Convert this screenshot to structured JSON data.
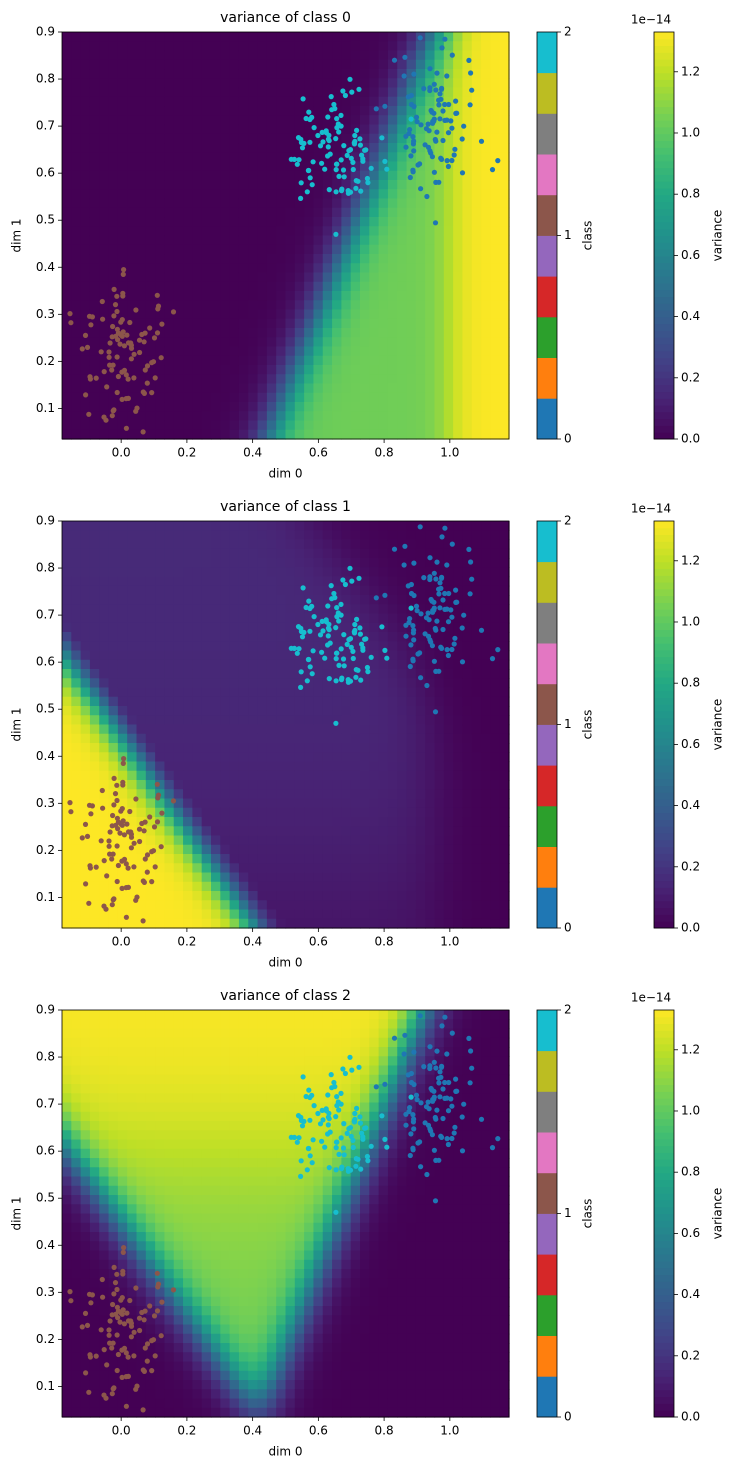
{
  "figure": {
    "panels": [
      {
        "title": "variance of class 0",
        "xlabel": "dim 0",
        "ylabel": "dim 1"
      },
      {
        "title": "variance of class 1",
        "xlabel": "dim 0",
        "ylabel": "dim 1"
      },
      {
        "title": "variance of class 2",
        "xlabel": "dim 0",
        "ylabel": "dim 1"
      }
    ],
    "class_colorbar": {
      "label": "class",
      "ticks": [
        "0",
        "1",
        "2"
      ]
    },
    "variance_colorbar": {
      "label": "variance",
      "offset_text": "1e−14",
      "ticks": [
        "0.0",
        "0.2",
        "0.4",
        "0.6",
        "0.8",
        "1.0",
        "1.2"
      ]
    },
    "x_ticks": [
      "0.0",
      "0.2",
      "0.4",
      "0.6",
      "0.8",
      "1.0"
    ],
    "y_ticks": [
      "0.1",
      "0.2",
      "0.3",
      "0.4",
      "0.5",
      "0.6",
      "0.7",
      "0.8",
      "0.9"
    ],
    "class_colors": [
      "#1f77b4",
      "#ff7f0e",
      "#2ca02c",
      "#d62728",
      "#9467bd",
      "#8c564b",
      "#e377c2",
      "#7f7f7f",
      "#bcbd22",
      "#17becf"
    ],
    "point_colors": {
      "class_0": "#1f77b4",
      "class_1": "#8c564b",
      "class_2": "#17becf"
    }
  },
  "chart_data": [
    {
      "type": "heatmap",
      "title": "variance of class 0",
      "xlabel": "dim 0",
      "ylabel": "dim 1",
      "xlim": [
        -0.18,
        1.18
      ],
      "ylim": [
        0.035,
        0.9
      ],
      "colormap": "viridis",
      "variance_range": [
        0.0,
        1.33e-14
      ],
      "region": "high variance to the right of a diagonal band running from (0.45, 0.04) up to (0.95, 0.9); ~1.33e-14 at far right, ~1.05e-14 in the band",
      "scatter_classes": [
        {
          "class": 0,
          "color": "#1f77b4",
          "center": [
            0.95,
            0.7
          ],
          "spread": [
            0.07,
            0.07
          ]
        },
        {
          "class": 1,
          "color": "#8c564b",
          "center": [
            0.0,
            0.22
          ],
          "spread": [
            0.07,
            0.07
          ]
        },
        {
          "class": 2,
          "color": "#17becf",
          "center": [
            0.65,
            0.65
          ],
          "spread": [
            0.07,
            0.07
          ]
        }
      ]
    },
    {
      "type": "heatmap",
      "title": "variance of class 1",
      "xlabel": "dim 0",
      "ylabel": "dim 1",
      "xlim": [
        -0.18,
        1.18
      ],
      "ylim": [
        0.035,
        0.9
      ],
      "colormap": "viridis",
      "variance_range": [
        0.0,
        1.33e-14
      ],
      "region": "high variance in lower-left corner bounded by the line from (-0.18, 0.62) to (0.4, 0.04); low (~0.15e-14) band beyond it",
      "scatter_classes": [
        {
          "class": 0,
          "color": "#1f77b4",
          "center": [
            0.95,
            0.7
          ],
          "spread": [
            0.07,
            0.07
          ]
        },
        {
          "class": 1,
          "color": "#8c564b",
          "center": [
            0.0,
            0.22
          ],
          "spread": [
            0.07,
            0.07
          ]
        },
        {
          "class": 2,
          "color": "#17becf",
          "center": [
            0.65,
            0.65
          ],
          "spread": [
            0.07,
            0.07
          ]
        }
      ]
    },
    {
      "type": "heatmap",
      "title": "variance of class 2",
      "xlabel": "dim 0",
      "ylabel": "dim 1",
      "xlim": [
        -0.18,
        1.18
      ],
      "ylim": [
        0.035,
        0.9
      ],
      "colormap": "viridis",
      "variance_range": [
        0.0,
        1.33e-14
      ],
      "region": "high variance in a V-shaped wedge above the line (-0.18, 0.62)-(0.42, 0.04) and left of the line (0.42, 0.04)-(0.92, 0.9)",
      "scatter_classes": [
        {
          "class": 0,
          "color": "#1f77b4",
          "center": [
            0.95,
            0.7
          ],
          "spread": [
            0.07,
            0.07
          ]
        },
        {
          "class": 1,
          "color": "#8c564b",
          "center": [
            0.0,
            0.22
          ],
          "spread": [
            0.07,
            0.07
          ]
        },
        {
          "class": 2,
          "color": "#17becf",
          "center": [
            0.65,
            0.65
          ],
          "spread": [
            0.07,
            0.07
          ]
        }
      ]
    }
  ]
}
